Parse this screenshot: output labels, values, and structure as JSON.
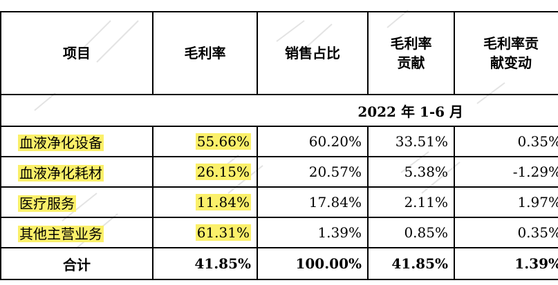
{
  "table": {
    "headers": [
      "项目",
      "毛利率",
      "销售占比",
      "毛利率贡献",
      "毛利率贡献变动"
    ],
    "header_lines": [
      [
        "项目"
      ],
      [
        "毛利率"
      ],
      [
        "销售占比"
      ],
      [
        "毛利率",
        "贡献"
      ],
      [
        "毛利率贡",
        "献变动"
      ]
    ],
    "period": "2022 年 1-6 月",
    "rows": [
      {
        "item": "血液净化设备",
        "gross_margin": "55.66%",
        "sales_share": "60.20%",
        "contribution": "33.51%",
        "change": "0.35%"
      },
      {
        "item": "血液净化耗材",
        "gross_margin": "26.15%",
        "sales_share": "20.57%",
        "contribution": "5.38%",
        "change": "-1.29%"
      },
      {
        "item": "医疗服务",
        "gross_margin": "11.84%",
        "sales_share": "17.84%",
        "contribution": "2.11%",
        "change": "1.97%"
      },
      {
        "item": "其他主营业务",
        "gross_margin": "61.31%",
        "sales_share": "1.39%",
        "contribution": "0.85%",
        "change": "0.35%"
      }
    ],
    "total": {
      "item": "合计",
      "gross_margin": "41.85%",
      "sales_share": "100.00%",
      "contribution": "41.85%",
      "change": "1.39%"
    }
  },
  "colors": {
    "highlight": "#fbf06a",
    "border": "#000000",
    "watermark": "#d9d9d9"
  }
}
